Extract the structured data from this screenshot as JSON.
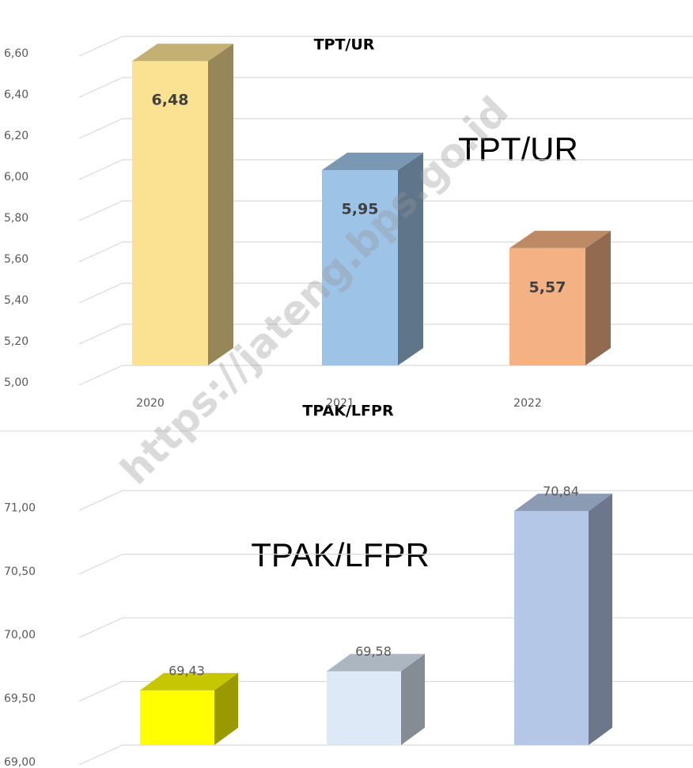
{
  "chart_data": [
    {
      "type": "bar3d",
      "title": "TPT/UR",
      "label": "TPT/UR",
      "categories": [
        "2020",
        "2021",
        "2022"
      ],
      "values": [
        6.48,
        5.95,
        5.57
      ],
      "value_labels": [
        "6,48",
        "5,95",
        "5,57"
      ],
      "colors": [
        "#fbe192",
        "#9dc3e6",
        "#f4b183"
      ],
      "ylim": [
        5.0,
        6.8
      ],
      "yticks": [
        {
          "value": 5.0,
          "label": "5,00"
        },
        {
          "value": 5.2,
          "label": "5,20"
        },
        {
          "value": 5.4,
          "label": "5,40"
        },
        {
          "value": 5.6,
          "label": "5,60"
        },
        {
          "value": 5.8,
          "label": "5,80"
        },
        {
          "value": 6.0,
          "label": "6,00"
        },
        {
          "value": 6.2,
          "label": "6,20"
        },
        {
          "value": 6.4,
          "label": "6,40"
        },
        {
          "value": 6.6,
          "label": "6,60"
        }
      ],
      "grid": true
    },
    {
      "type": "bar3d",
      "title": "TPAK/LFPR",
      "label": "TPAK/LFPR",
      "values": [
        69.43,
        69.58,
        70.84
      ],
      "value_labels": [
        "69,43",
        "69,58",
        "70,84"
      ],
      "colors": [
        "#ffff00",
        "#dde9f6",
        "#b4c7e7"
      ],
      "ylim": [
        69.0,
        71.4
      ],
      "yticks": [
        {
          "value": 69.0,
          "label": "69,00"
        },
        {
          "value": 69.5,
          "label": "69,50"
        },
        {
          "value": 70.0,
          "label": "70,00"
        },
        {
          "value": 70.5,
          "label": "70,50"
        },
        {
          "value": 71.0,
          "label": "71,00"
        }
      ],
      "grid": true
    }
  ],
  "watermark": "https://jateng.bps.go.id"
}
